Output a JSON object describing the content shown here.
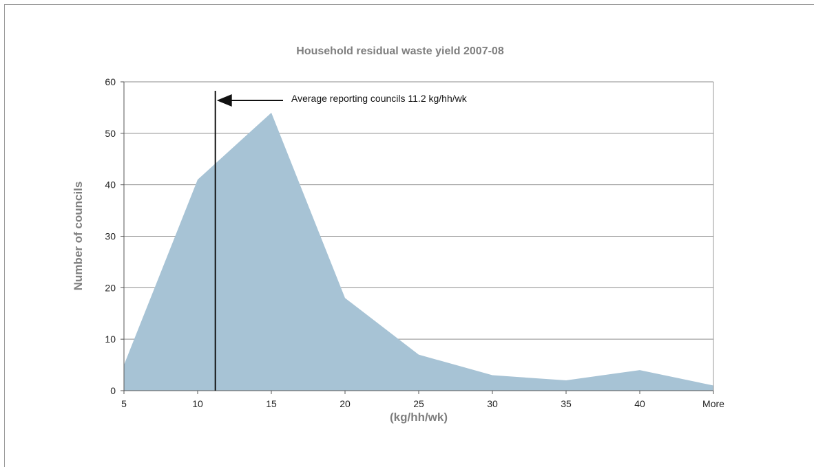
{
  "chart_data": {
    "type": "area",
    "title": "Household residual waste yield 2007-08",
    "xlabel": "(kg/hh/wk)",
    "ylabel": "Number of councils",
    "categories": [
      "5",
      "10",
      "15",
      "20",
      "25",
      "30",
      "35",
      "40",
      "More"
    ],
    "series": [
      {
        "values": [
          5,
          41,
          54,
          18,
          7,
          3,
          2,
          4,
          1
        ],
        "color": "#a7c3d5"
      }
    ],
    "ylim": [
      0,
      60
    ],
    "yticks": [
      0,
      10,
      20,
      30,
      40,
      50,
      60
    ],
    "grid": true,
    "legend": "none",
    "annotation": {
      "text": "Average reporting councils 11.2 kg/hh/wk",
      "x": 11.2
    }
  }
}
